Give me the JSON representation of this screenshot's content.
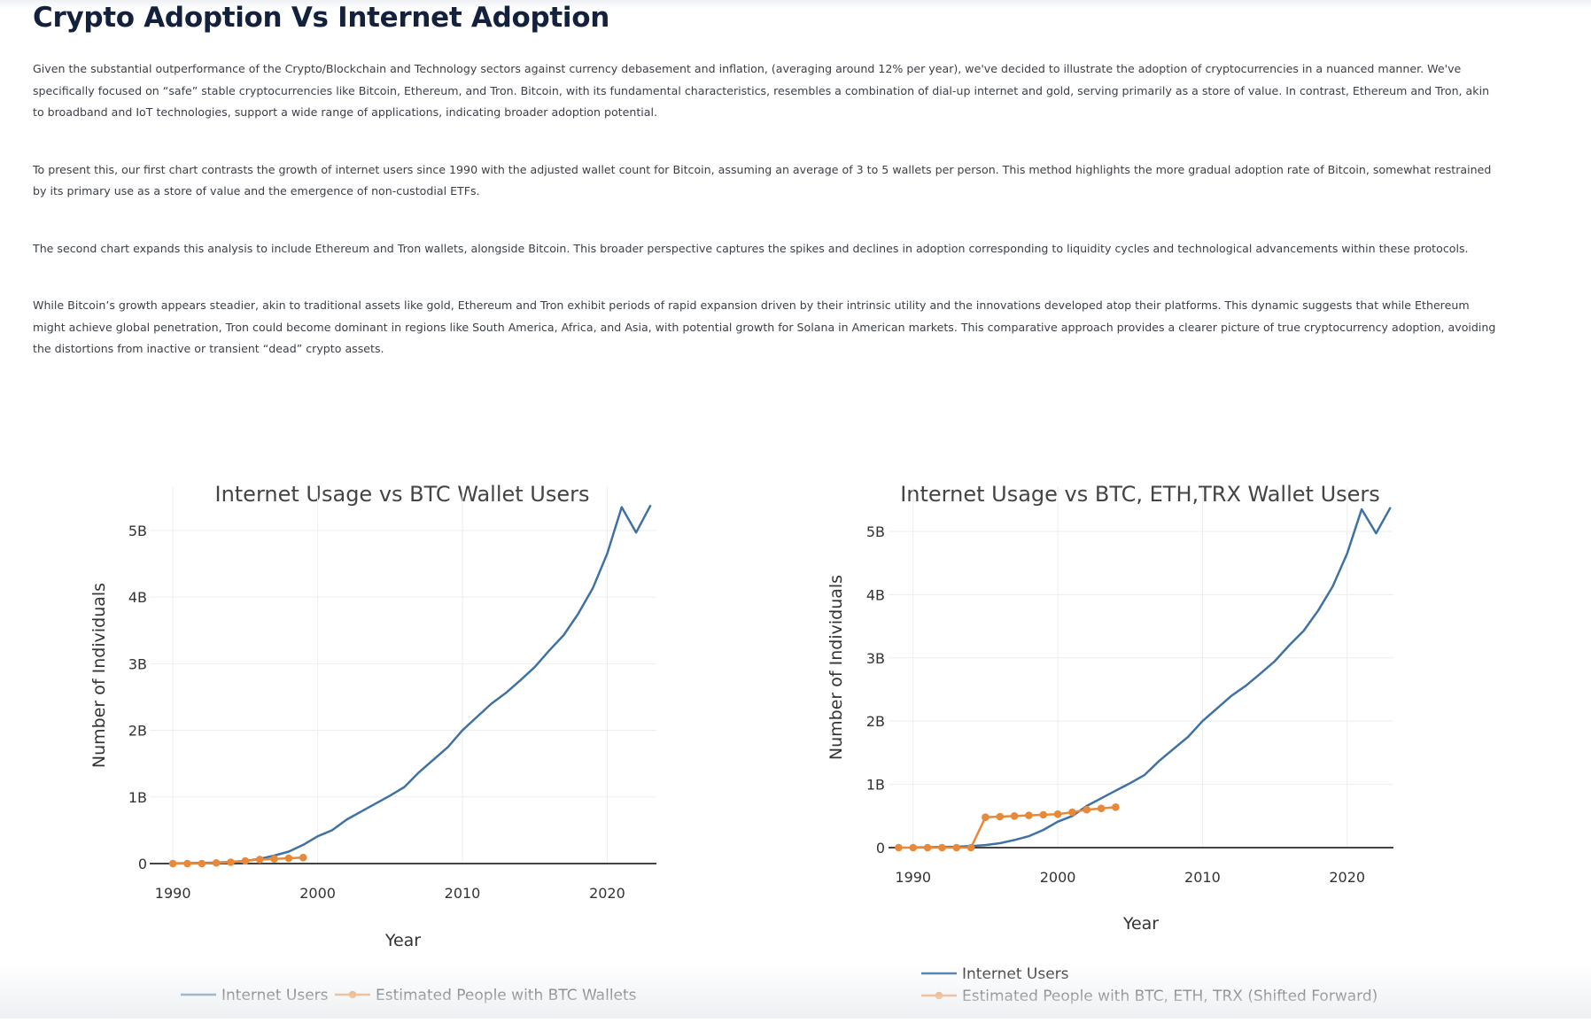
{
  "page": {
    "title": "Crypto Adoption Vs Internet Adoption",
    "paragraphs": [
      "Given the substantial outperformance of the Crypto/Blockchain and Technology sectors against currency debasement and inflation, (averaging around 12% per year), we've decided to illustrate the adoption of cryptocurrencies in a nuanced manner. We've specifically focused on “safe” stable cryptocurrencies like Bitcoin, Ethereum, and Tron. Bitcoin, with its fundamental characteristics, resembles a combination of dial-up internet and gold, serving primarily as a store of value. In contrast, Ethereum and Tron, akin to broadband and IoT technologies, support a wide range of applications, indicating broader adoption potential.",
      "To present this, our first chart contrasts the growth of internet users since 1990 with the adjusted wallet count for Bitcoin, assuming an average of 3 to 5 wallets per person. This method highlights the more gradual adoption rate of Bitcoin, somewhat restrained by its primary use as a store of value and the emergence of non-custodial ETFs.",
      "The second chart expands this analysis to include Ethereum and Tron wallets, alongside Bitcoin. This broader perspective captures the spikes and declines in adoption corresponding to liquidity cycles and technological advancements within these protocols.",
      "While Bitcoin’s growth appears steadier, akin to traditional assets like gold, Ethereum and Tron exhibit periods of rapid expansion driven by their intrinsic utility and the innovations developed atop their platforms. This dynamic suggests that while Ethereum might achieve global penetration, Tron could become dominant in regions like South America, Africa, and Asia, with potential growth for Solana in American markets. This comparative approach provides a clearer picture of true cryptocurrency adoption, avoiding the distortions from inactive or transient “dead” crypto assets."
    ]
  },
  "colors": {
    "internet": "#3f72a3",
    "wallets": "#e8893a",
    "title": "#14213d",
    "grid": "#ebedf0",
    "axis_text": "#333333"
  },
  "chart_data": [
    {
      "type": "line",
      "title": "Internet Usage vs BTC Wallet Users",
      "xlabel": "Year",
      "ylabel": "Number of Individuals",
      "xlim": [
        1988.4,
        2023.4
      ],
      "ylim": [
        0,
        5.65
      ],
      "xticks": [
        1990,
        2000,
        2010,
        2020
      ],
      "yticks": [
        0,
        1,
        2,
        3,
        4,
        5
      ],
      "ytick_labels": [
        "0",
        "1B",
        "2B",
        "3B",
        "4B",
        "5B"
      ],
      "legend": "bottom-horizontal",
      "series": [
        {
          "name": "Internet Users",
          "color": "#3f72a3",
          "markers": false,
          "x": [
            1990,
            1991,
            1992,
            1993,
            1994,
            1995,
            1996,
            1997,
            1998,
            1999,
            2000,
            2001,
            2002,
            2003,
            2004,
            2005,
            2006,
            2007,
            2008,
            2009,
            2010,
            2011,
            2012,
            2013,
            2014,
            2015,
            2016,
            2017,
            2018,
            2019,
            2020,
            2021,
            2022,
            2023
          ],
          "values": [
            0.003,
            0.005,
            0.01,
            0.014,
            0.025,
            0.04,
            0.07,
            0.12,
            0.18,
            0.28,
            0.41,
            0.5,
            0.66,
            0.78,
            0.9,
            1.02,
            1.15,
            1.37,
            1.56,
            1.75,
            2.0,
            2.2,
            2.4,
            2.56,
            2.75,
            2.95,
            3.2,
            3.43,
            3.75,
            4.13,
            4.65,
            5.35,
            4.97,
            5.38
          ]
        },
        {
          "name": "Estimated People with BTC Wallets",
          "color": "#e8893a",
          "markers": true,
          "x": [
            1990,
            1991,
            1992,
            1993,
            1994,
            1995,
            1996,
            1997,
            1998,
            1999
          ],
          "values": [
            0.0,
            0.0,
            0.0,
            0.01,
            0.02,
            0.04,
            0.06,
            0.07,
            0.08,
            0.09
          ]
        }
      ]
    },
    {
      "type": "line",
      "title": "Internet Usage vs BTC, ETH,TRX Wallet Users",
      "xlabel": "Year",
      "ylabel": "Number of Individuals",
      "xlim": [
        1988.3,
        2023.2
      ],
      "ylim": [
        0,
        5.7
      ],
      "xticks": [
        1990,
        2000,
        2010,
        2020
      ],
      "yticks": [
        0,
        1,
        2,
        3,
        4,
        5
      ],
      "ytick_labels": [
        "0",
        "1B",
        "2B",
        "3B",
        "4B",
        "5B"
      ],
      "legend": "bottom-vertical",
      "series": [
        {
          "name": "Internet Users",
          "color": "#3f72a3",
          "markers": false,
          "x": [
            1990,
            1991,
            1992,
            1993,
            1994,
            1995,
            1996,
            1997,
            1998,
            1999,
            2000,
            2001,
            2002,
            2003,
            2004,
            2005,
            2006,
            2007,
            2008,
            2009,
            2010,
            2011,
            2012,
            2013,
            2014,
            2015,
            2016,
            2017,
            2018,
            2019,
            2020,
            2021,
            2022,
            2023
          ],
          "values": [
            0.003,
            0.005,
            0.01,
            0.014,
            0.025,
            0.04,
            0.07,
            0.12,
            0.18,
            0.28,
            0.41,
            0.5,
            0.66,
            0.78,
            0.9,
            1.02,
            1.15,
            1.37,
            1.56,
            1.75,
            2.0,
            2.2,
            2.4,
            2.56,
            2.75,
            2.95,
            3.2,
            3.43,
            3.75,
            4.13,
            4.65,
            5.35,
            4.97,
            5.38
          ]
        },
        {
          "name": "Estimated People with BTC, ETH, TRX (Shifted Forward)",
          "color": "#e8893a",
          "markers": true,
          "x": [
            1989,
            1990,
            1991,
            1992,
            1993,
            1994,
            1995,
            1996,
            1997,
            1998,
            1999,
            2000,
            2001,
            2002,
            2003,
            2004
          ],
          "values": [
            0.0,
            0.0,
            0.0,
            0.0,
            0.0,
            0.0,
            0.48,
            0.49,
            0.5,
            0.51,
            0.52,
            0.53,
            0.56,
            0.6,
            0.62,
            0.64
          ]
        }
      ]
    }
  ]
}
